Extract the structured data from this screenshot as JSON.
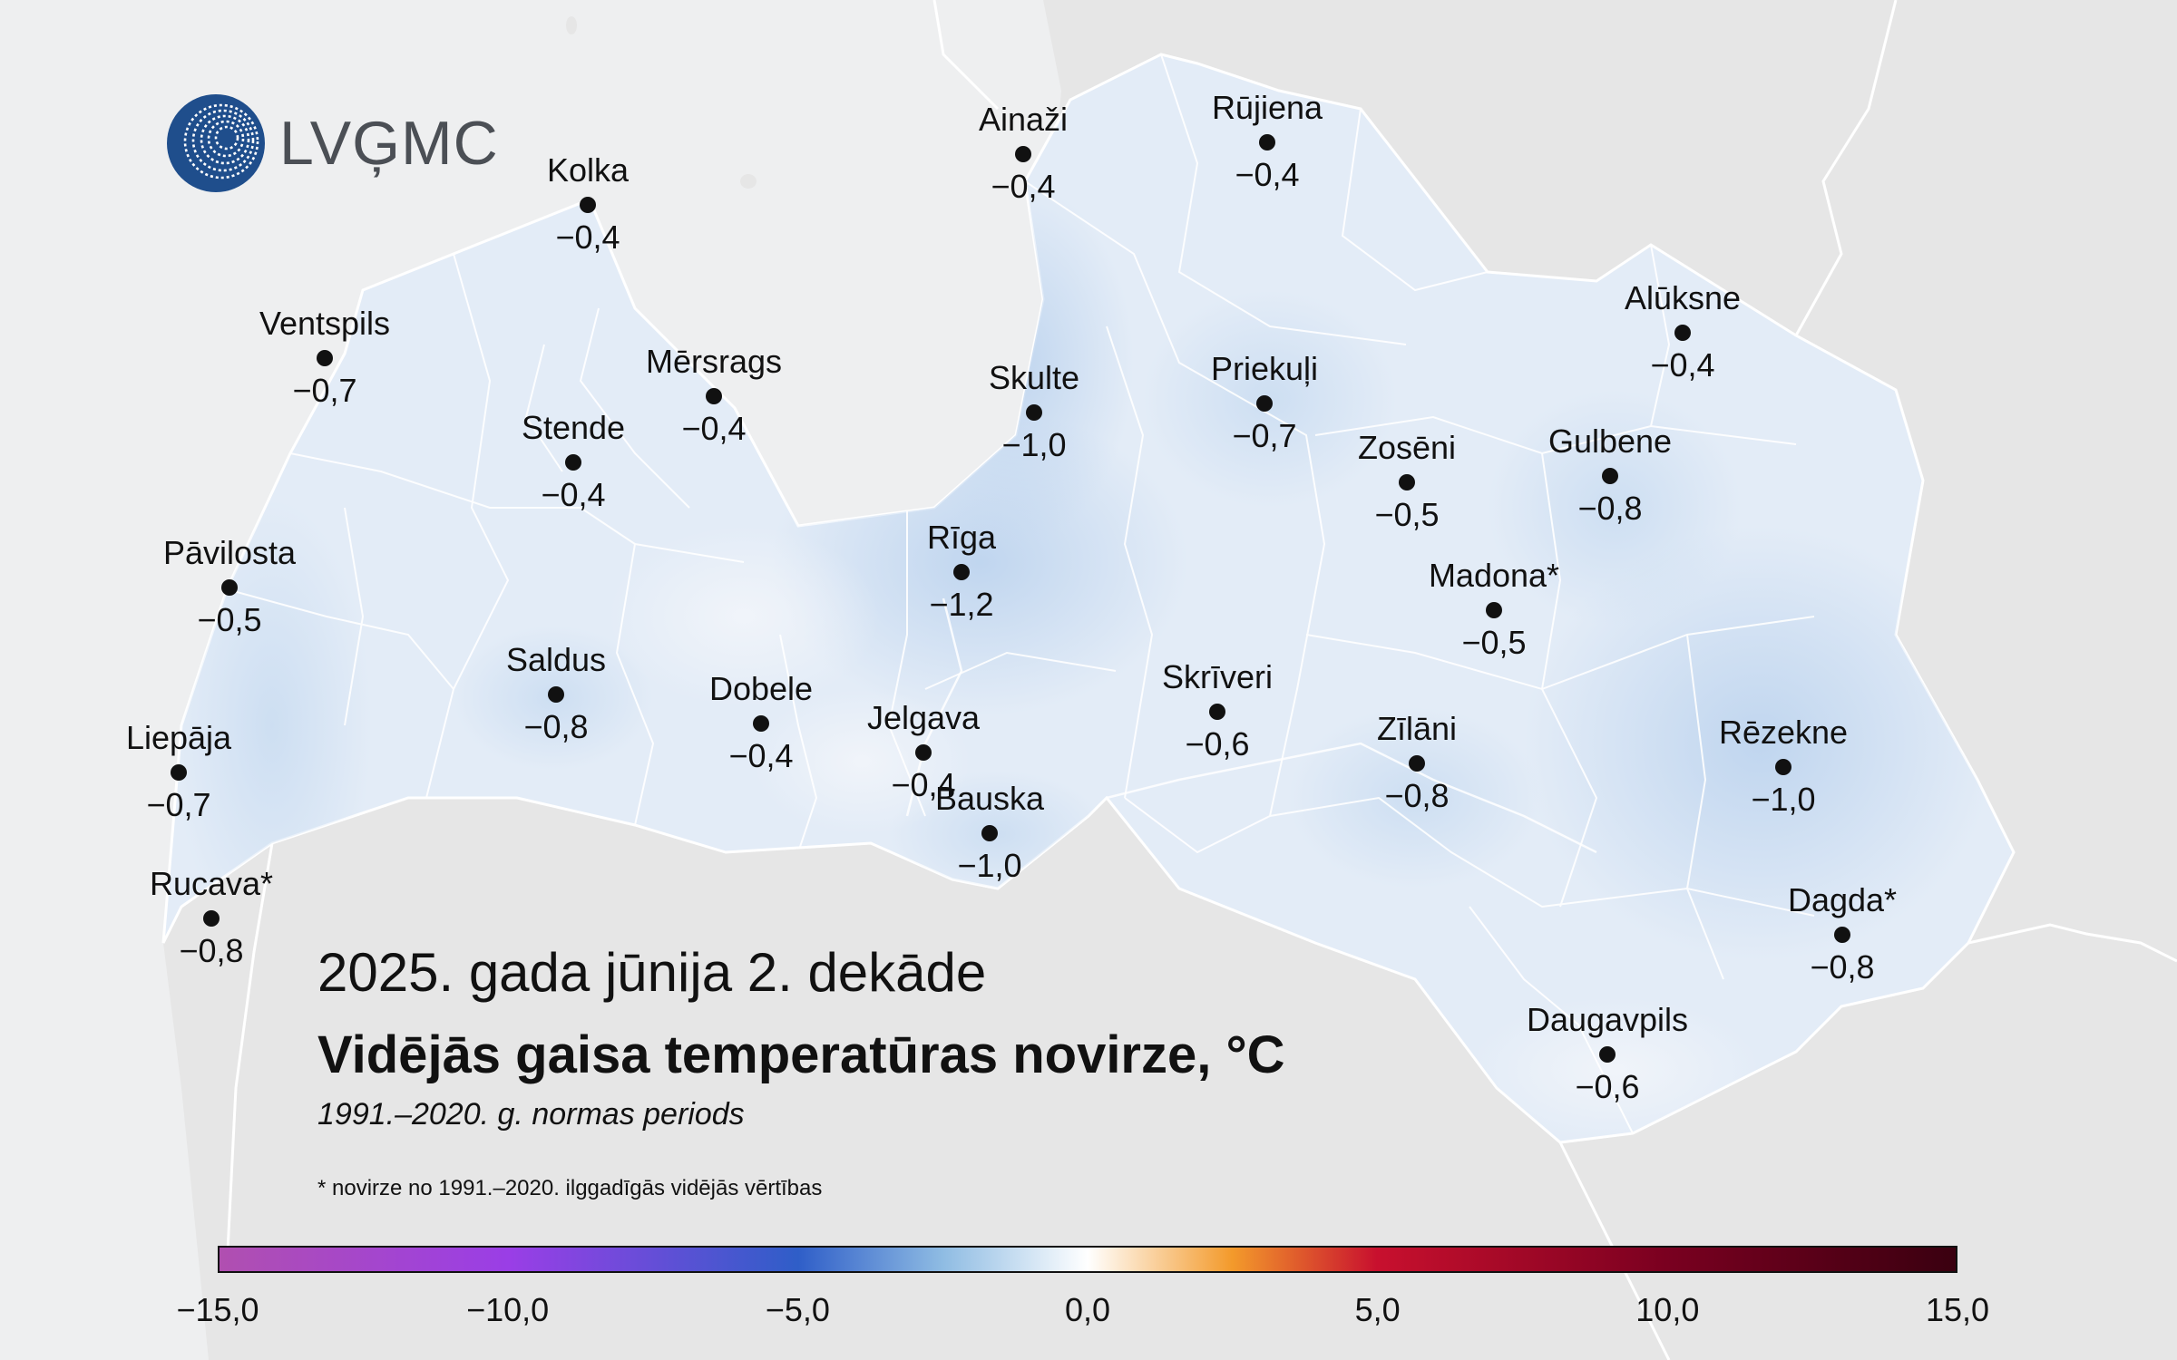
{
  "logo": {
    "text": "LVĢMC",
    "icon": "lvgmc-logo-icon"
  },
  "title": {
    "date": "2025. gada jūnija 2. dekāde",
    "main": "Vidējās gaisa temperatūras novirze, °C",
    "period": "1991.–2020. g. normas periods"
  },
  "footnote": "* novirze no 1991.–2020. ilggadīgās vidējās vērtības",
  "colors": {
    "sea": "#eeeff0",
    "land_outside": "#e6e6e6",
    "latvia_fill": "#e3ecf7",
    "border": "#ffffff"
  },
  "legend": {
    "min": -15,
    "max": 15,
    "ticks": [
      "−15,0",
      "−10,0",
      "−5,0",
      "0,0",
      "5,0",
      "10,0",
      "15,0"
    ],
    "gradient": [
      {
        "value": -15,
        "color": "#b04fb0"
      },
      {
        "value": -10,
        "color": "#9a3ee6"
      },
      {
        "value": -5,
        "color": "#2f5ec8"
      },
      {
        "value": -2.5,
        "color": "#8fbce3"
      },
      {
        "value": 0,
        "color": "#ffffff"
      },
      {
        "value": 2.5,
        "color": "#f39a2b"
      },
      {
        "value": 5,
        "color": "#c8102e"
      },
      {
        "value": 10,
        "color": "#7a0020"
      },
      {
        "value": 15,
        "color": "#3a0010"
      }
    ]
  },
  "stations": [
    {
      "name": "Kolka",
      "value": "−0,4"
    },
    {
      "name": "Ainaži",
      "value": "−0,4"
    },
    {
      "name": "Rūjiena",
      "value": "−0,4"
    },
    {
      "name": "Ventspils",
      "value": "−0,7"
    },
    {
      "name": "Mērsrags",
      "value": "−0,4"
    },
    {
      "name": "Skulte",
      "value": "−1,0"
    },
    {
      "name": "Priekuļi",
      "value": "−0,7"
    },
    {
      "name": "Alūksne",
      "value": "−0,4"
    },
    {
      "name": "Stende",
      "value": "−0,4"
    },
    {
      "name": "Zosēni",
      "value": "−0,5"
    },
    {
      "name": "Gulbene",
      "value": "−0,8"
    },
    {
      "name": "Pāvilosta",
      "value": "−0,5"
    },
    {
      "name": "Rīga",
      "value": "−1,2"
    },
    {
      "name": "Madona*",
      "value": "−0,5"
    },
    {
      "name": "Saldus",
      "value": "−0,8"
    },
    {
      "name": "Dobele",
      "value": "−0,4"
    },
    {
      "name": "Jelgava",
      "value": "−0,4"
    },
    {
      "name": "Skrīveri",
      "value": "−0,6"
    },
    {
      "name": "Zīlāni",
      "value": "−0,8"
    },
    {
      "name": "Rēzekne",
      "value": "−1,0"
    },
    {
      "name": "Liepāja",
      "value": "−0,7"
    },
    {
      "name": "Bauska",
      "value": "−1,0"
    },
    {
      "name": "Rucava*",
      "value": "−0,8"
    },
    {
      "name": "Dagda*",
      "value": "−0,8"
    },
    {
      "name": "Daugavpils",
      "value": "−0,6"
    }
  ]
}
